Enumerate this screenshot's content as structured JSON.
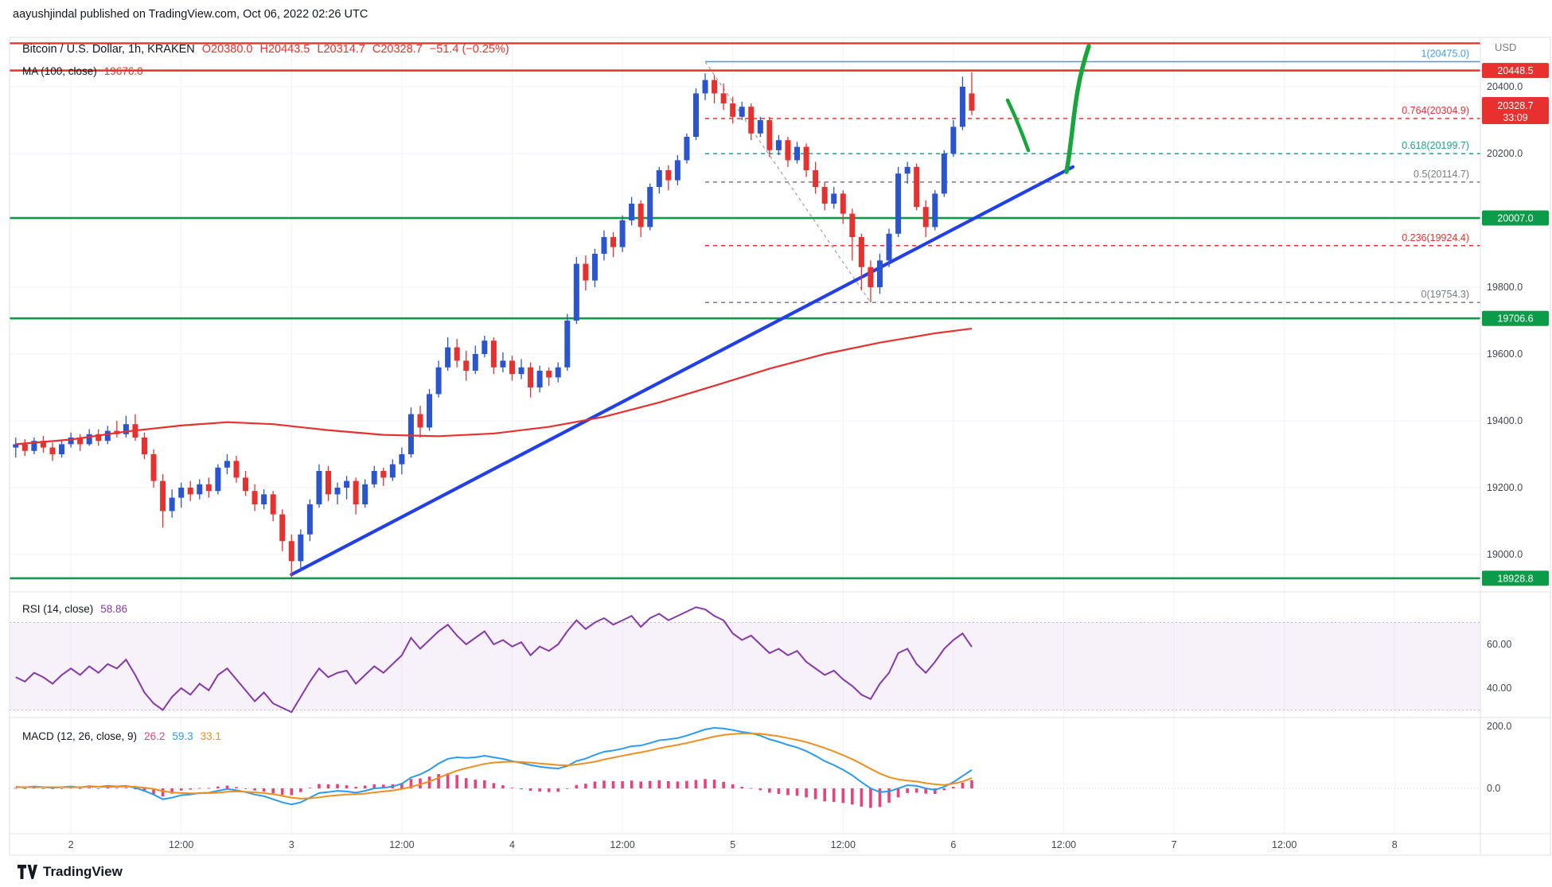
{
  "header": {
    "published": "aayushjindal published on TradingView.com, Oct 06, 2022 02:26 UTC"
  },
  "legend": {
    "symbol": "Bitcoin / U.S. Dollar, 1h, KRAKEN",
    "o": "O20380.0",
    "h": "H20443.5",
    "l": "L20314.7",
    "c": "C20328.7",
    "change": "−51.4 (−0.25%)",
    "ma_label": "MA (100, close)",
    "ma_value": "19676.0",
    "currency": "USD"
  },
  "rsi_panel": {
    "label": "RSI (14, close)",
    "value": "58.86"
  },
  "macd_panel": {
    "label": "MACD (12, 26, close, 9)",
    "hist": "26.2",
    "macd": "59.3",
    "signal": "33.1"
  },
  "footer": {
    "brand": "TradingView"
  },
  "colors": {
    "up": "#2a54d0",
    "down": "#e8302e",
    "red": "#e8302e",
    "green": "#0c9b48",
    "trend": "#2140e8",
    "fib_blue": "#3b9df0",
    "teal": "#1ca488",
    "gray": "#787b86",
    "rsi": "#8639a8",
    "macd_line": "#2a9bf0",
    "macd_signal": "#ef8f1f",
    "macd_hist": "#ec407a",
    "ma": "#e8302e",
    "arrow": "#16a63c"
  },
  "chart_data": {
    "type": "candlestick+indicators",
    "title": "Bitcoin / U.S. Dollar, 1h, KRAKEN",
    "x_axis": {
      "ticks": [
        {
          "label": "2",
          "idx": 6
        },
        {
          "label": "12:00",
          "idx": 18
        },
        {
          "label": "3",
          "idx": 30
        },
        {
          "label": "12:00",
          "idx": 42
        },
        {
          "label": "4",
          "idx": 54
        },
        {
          "label": "12:00",
          "idx": 66
        },
        {
          "label": "5",
          "idx": 78
        },
        {
          "label": "12:00",
          "idx": 90
        },
        {
          "label": "6",
          "idx": 102
        },
        {
          "label": "12:00",
          "idx": 114
        },
        {
          "label": "7",
          "idx": 126
        },
        {
          "label": "12:00",
          "idx": 138
        },
        {
          "label": "8",
          "idx": 150
        }
      ]
    },
    "price_axis": {
      "range": [
        18890,
        20560
      ],
      "ticks": [
        [
          "20400.0",
          20400
        ],
        [
          "20200.0",
          20200
        ],
        [
          "19800.0",
          19800
        ],
        [
          "19600.0",
          19600
        ],
        [
          "19400.0",
          19400
        ],
        [
          "19200.0",
          19200
        ],
        [
          "19000.0",
          19000
        ]
      ]
    },
    "candles": [
      [
        19320,
        19350,
        19290,
        19330
      ],
      [
        19330,
        19345,
        19295,
        19310
      ],
      [
        19310,
        19350,
        19300,
        19340
      ],
      [
        19340,
        19355,
        19305,
        19320
      ],
      [
        19320,
        19335,
        19280,
        19300
      ],
      [
        19300,
        19340,
        19290,
        19330
      ],
      [
        19330,
        19365,
        19320,
        19350
      ],
      [
        19350,
        19360,
        19310,
        19330
      ],
      [
        19330,
        19375,
        19325,
        19360
      ],
      [
        19360,
        19375,
        19325,
        19340
      ],
      [
        19340,
        19385,
        19330,
        19370
      ],
      [
        19370,
        19400,
        19350,
        19360
      ],
      [
        19360,
        19415,
        19350,
        19390
      ],
      [
        19390,
        19420,
        19340,
        19350
      ],
      [
        19350,
        19365,
        19285,
        19300
      ],
      [
        19300,
        19315,
        19200,
        19220
      ],
      [
        19220,
        19240,
        19080,
        19130
      ],
      [
        19130,
        19195,
        19110,
        19170
      ],
      [
        19170,
        19215,
        19140,
        19200
      ],
      [
        19200,
        19220,
        19160,
        19180
      ],
      [
        19180,
        19225,
        19165,
        19210
      ],
      [
        19210,
        19230,
        19170,
        19190
      ],
      [
        19190,
        19270,
        19180,
        19260
      ],
      [
        19260,
        19300,
        19240,
        19280
      ],
      [
        19280,
        19295,
        19215,
        19230
      ],
      [
        19230,
        19250,
        19175,
        19190
      ],
      [
        19190,
        19210,
        19130,
        19150
      ],
      [
        19150,
        19195,
        19135,
        19180
      ],
      [
        19180,
        19190,
        19100,
        19120
      ],
      [
        19120,
        19135,
        19010,
        19040
      ],
      [
        19040,
        19060,
        18930,
        18980
      ],
      [
        18980,
        19075,
        18950,
        19060
      ],
      [
        19060,
        19165,
        19040,
        19150
      ],
      [
        19150,
        19270,
        19140,
        19250
      ],
      [
        19250,
        19265,
        19160,
        19180
      ],
      [
        19180,
        19215,
        19150,
        19200
      ],
      [
        19200,
        19235,
        19165,
        19220
      ],
      [
        19220,
        19230,
        19120,
        19150
      ],
      [
        19150,
        19225,
        19140,
        19210
      ],
      [
        19210,
        19265,
        19200,
        19250
      ],
      [
        19250,
        19260,
        19205,
        19230
      ],
      [
        19230,
        19285,
        19220,
        19270
      ],
      [
        19270,
        19320,
        19240,
        19300
      ],
      [
        19300,
        19440,
        19290,
        19420
      ],
      [
        19420,
        19445,
        19350,
        19380
      ],
      [
        19380,
        19495,
        19370,
        19480
      ],
      [
        19480,
        19580,
        19470,
        19560
      ],
      [
        19560,
        19650,
        19550,
        19620
      ],
      [
        19620,
        19645,
        19560,
        19580
      ],
      [
        19580,
        19610,
        19520,
        19550
      ],
      [
        19550,
        19625,
        19540,
        19600
      ],
      [
        19600,
        19655,
        19590,
        19640
      ],
      [
        19640,
        19650,
        19540,
        19560
      ],
      [
        19560,
        19605,
        19545,
        19580
      ],
      [
        19580,
        19595,
        19520,
        19540
      ],
      [
        19540,
        19585,
        19525,
        19560
      ],
      [
        19560,
        19575,
        19470,
        19500
      ],
      [
        19500,
        19565,
        19485,
        19550
      ],
      [
        19550,
        19560,
        19505,
        19530
      ],
      [
        19530,
        19575,
        19515,
        19560
      ],
      [
        19560,
        19720,
        19550,
        19700
      ],
      [
        19700,
        19890,
        19690,
        19870
      ],
      [
        19870,
        19895,
        19790,
        19820
      ],
      [
        19820,
        19915,
        19800,
        19900
      ],
      [
        19900,
        19970,
        19880,
        19950
      ],
      [
        19950,
        19965,
        19890,
        19920
      ],
      [
        19920,
        20015,
        19905,
        20000
      ],
      [
        20000,
        20070,
        19985,
        20050
      ],
      [
        20050,
        20060,
        19950,
        19980
      ],
      [
        19980,
        20110,
        19970,
        20100
      ],
      [
        20100,
        20160,
        20080,
        20150
      ],
      [
        20150,
        20165,
        20090,
        20120
      ],
      [
        20120,
        20195,
        20105,
        20180
      ],
      [
        20180,
        20260,
        20170,
        20250
      ],
      [
        20250,
        20395,
        20240,
        20380
      ],
      [
        20380,
        20440,
        20360,
        20420
      ],
      [
        20420,
        20435,
        20350,
        20380
      ],
      [
        20380,
        20410,
        20330,
        20350
      ],
      [
        20350,
        20370,
        20290,
        20310
      ],
      [
        20310,
        20355,
        20300,
        20340
      ],
      [
        20340,
        20350,
        20240,
        20260
      ],
      [
        20260,
        20310,
        20250,
        20300
      ],
      [
        20300,
        20310,
        20190,
        20210
      ],
      [
        20210,
        20255,
        20195,
        20240
      ],
      [
        20240,
        20250,
        20160,
        20180
      ],
      [
        20180,
        20235,
        20170,
        20220
      ],
      [
        20220,
        20230,
        20130,
        20150
      ],
      [
        20150,
        20175,
        20080,
        20100
      ],
      [
        20100,
        20115,
        20030,
        20050
      ],
      [
        20050,
        20100,
        20035,
        20080
      ],
      [
        20080,
        20090,
        19990,
        20020
      ],
      [
        20020,
        20035,
        19880,
        19950
      ],
      [
        19950,
        19960,
        19790,
        19860
      ],
      [
        19860,
        19880,
        19754,
        19800
      ],
      [
        19800,
        19900,
        19780,
        19880
      ],
      [
        19880,
        19975,
        19860,
        19960
      ],
      [
        19960,
        20160,
        19950,
        20140
      ],
      [
        20140,
        20175,
        20110,
        20160
      ],
      [
        20160,
        20170,
        20030,
        20040
      ],
      [
        20040,
        20060,
        19950,
        19980
      ],
      [
        19980,
        20090,
        19970,
        20080
      ],
      [
        20080,
        20210,
        20070,
        20200
      ],
      [
        20200,
        20300,
        20190,
        20280
      ],
      [
        20280,
        20430,
        20270,
        20400
      ],
      [
        20380,
        20443.5,
        20314.7,
        20328.7
      ]
    ],
    "ma100": {
      "last": 19676.0,
      "points": [
        [
          0,
          19330
        ],
        [
          6,
          19344
        ],
        [
          12,
          19368
        ],
        [
          18,
          19386
        ],
        [
          23,
          19396
        ],
        [
          28,
          19390
        ],
        [
          34,
          19372
        ],
        [
          40,
          19358
        ],
        [
          46,
          19354
        ],
        [
          52,
          19362
        ],
        [
          58,
          19382
        ],
        [
          64,
          19412
        ],
        [
          70,
          19455
        ],
        [
          76,
          19505
        ],
        [
          82,
          19556
        ],
        [
          88,
          19600
        ],
        [
          94,
          19634
        ],
        [
          100,
          19662
        ],
        [
          104,
          19676
        ]
      ]
    },
    "levels": {
      "green": [
        20007.0,
        19706.6,
        18928.8
      ],
      "red": [
        20530.0,
        20448.5
      ],
      "badges": [
        {
          "label": "20448.5",
          "price": 20448.5,
          "bg": "red"
        },
        {
          "label": "20328.7",
          "sub": "33:09",
          "price": 20328.7,
          "bg": "red"
        },
        {
          "label": "20007.0",
          "price": 20007.0,
          "bg": "green"
        },
        {
          "label": "19706.6",
          "price": 19706.6,
          "bg": "green"
        },
        {
          "label": "18928.8",
          "price": 18928.8,
          "bg": "green"
        }
      ]
    },
    "fib": {
      "start_idx": 75,
      "levels": [
        {
          "label": "1(20475.0)",
          "price": 20475.0,
          "color": "fib_blue",
          "dash": false
        },
        {
          "label": "0.764(20304.9)",
          "price": 20304.9,
          "color": "red",
          "dash": true
        },
        {
          "label": "0.618(20199.7)",
          "price": 20199.7,
          "color": "teal",
          "dash": true
        },
        {
          "label": "0.5(20114.7)",
          "price": 20114.7,
          "color": "gray",
          "dash": true
        },
        {
          "label": "0.236(19924.4)",
          "price": 19924.4,
          "color": "red",
          "dash": true
        },
        {
          "label": "0(19754.3)",
          "price": 19754.3,
          "color": "gray",
          "dash": true
        }
      ],
      "diagonal": [
        [
          75,
          20475.0
        ],
        [
          93,
          19754.3
        ]
      ]
    },
    "trendline": [
      [
        30,
        18940
      ],
      [
        115,
        20160
      ]
    ],
    "drawings": {
      "arrow_up": [
        [
          1340,
          216
        ],
        [
          1350,
          160
        ],
        [
          1348,
          118
        ],
        [
          1368,
          58
        ]
      ],
      "pullback_mark": [
        [
          1266,
          126
        ],
        [
          1279,
          153
        ],
        [
          1292,
          189
        ]
      ]
    },
    "rsi": {
      "last": 58.86,
      "band": [
        70,
        30
      ],
      "ticks": [
        [
          "60.00",
          60
        ],
        [
          "40.00",
          40
        ]
      ],
      "values": [
        45,
        43,
        47,
        45,
        42,
        46,
        49,
        46,
        50,
        47,
        51,
        49,
        53,
        46,
        38,
        33,
        30,
        36,
        40,
        37,
        42,
        39,
        46,
        49,
        44,
        39,
        34,
        38,
        33,
        31,
        29,
        36,
        43,
        49,
        45,
        47,
        48,
        42,
        46,
        50,
        47,
        51,
        55,
        63,
        58,
        62,
        66,
        69,
        64,
        60,
        63,
        66,
        60,
        62,
        59,
        61,
        55,
        59,
        57,
        60,
        66,
        71,
        67,
        70,
        72,
        69,
        71,
        73,
        68,
        72,
        74,
        71,
        73,
        75,
        77,
        76,
        73,
        71,
        65,
        62,
        64,
        60,
        56,
        58,
        55,
        57,
        52,
        49,
        46,
        48,
        44,
        41,
        37,
        35,
        42,
        47,
        56,
        58,
        51,
        47,
        52,
        58,
        62,
        65,
        58.86
      ]
    },
    "macd": {
      "ticks": [
        [
          "200.0",
          200
        ],
        [
          "0.0",
          0
        ]
      ],
      "macd": [
        5,
        3,
        6,
        4,
        2,
        4,
        6,
        3,
        7,
        5,
        8,
        6,
        8,
        2,
        -8,
        -20,
        -35,
        -30,
        -22,
        -20,
        -15,
        -14,
        -8,
        -2,
        -6,
        -12,
        -20,
        -25,
        -35,
        -45,
        -52,
        -45,
        -30,
        -15,
        -12,
        -8,
        -10,
        -14,
        -8,
        0,
        2,
        6,
        15,
        35,
        45,
        60,
        80,
        95,
        100,
        98,
        100,
        105,
        100,
        95,
        88,
        82,
        75,
        70,
        66,
        64,
        72,
        88,
        96,
        108,
        118,
        122,
        128,
        136,
        138,
        146,
        155,
        158,
        162,
        170,
        180,
        190,
        195,
        193,
        188,
        182,
        178,
        170,
        158,
        150,
        140,
        132,
        120,
        105,
        88,
        75,
        60,
        42,
        20,
        0,
        -12,
        -10,
        0,
        10,
        8,
        0,
        -5,
        5,
        20,
        40,
        59.3
      ],
      "signal": [
        4,
        4,
        4,
        4,
        4,
        4,
        4,
        4,
        5,
        5,
        5,
        5,
        6,
        5,
        2,
        -2,
        -9,
        -13,
        -15,
        -16,
        -16,
        -15,
        -14,
        -11,
        -10,
        -11,
        -13,
        -15,
        -19,
        -24,
        -30,
        -33,
        -32,
        -29,
        -25,
        -22,
        -20,
        -19,
        -17,
        -13,
        -10,
        -7,
        -2,
        5,
        13,
        22,
        34,
        46,
        57,
        65,
        72,
        79,
        83,
        85,
        86,
        85,
        83,
        80,
        78,
        75,
        74,
        77,
        81,
        86,
        93,
        99,
        105,
        111,
        116,
        122,
        129,
        135,
        140,
        146,
        153,
        160,
        167,
        172,
        175,
        177,
        177,
        176,
        172,
        168,
        162,
        156,
        149,
        140,
        130,
        119,
        107,
        94,
        79,
        63,
        48,
        36,
        29,
        25,
        22,
        17,
        13,
        11,
        15,
        22,
        33.1
      ]
    }
  }
}
